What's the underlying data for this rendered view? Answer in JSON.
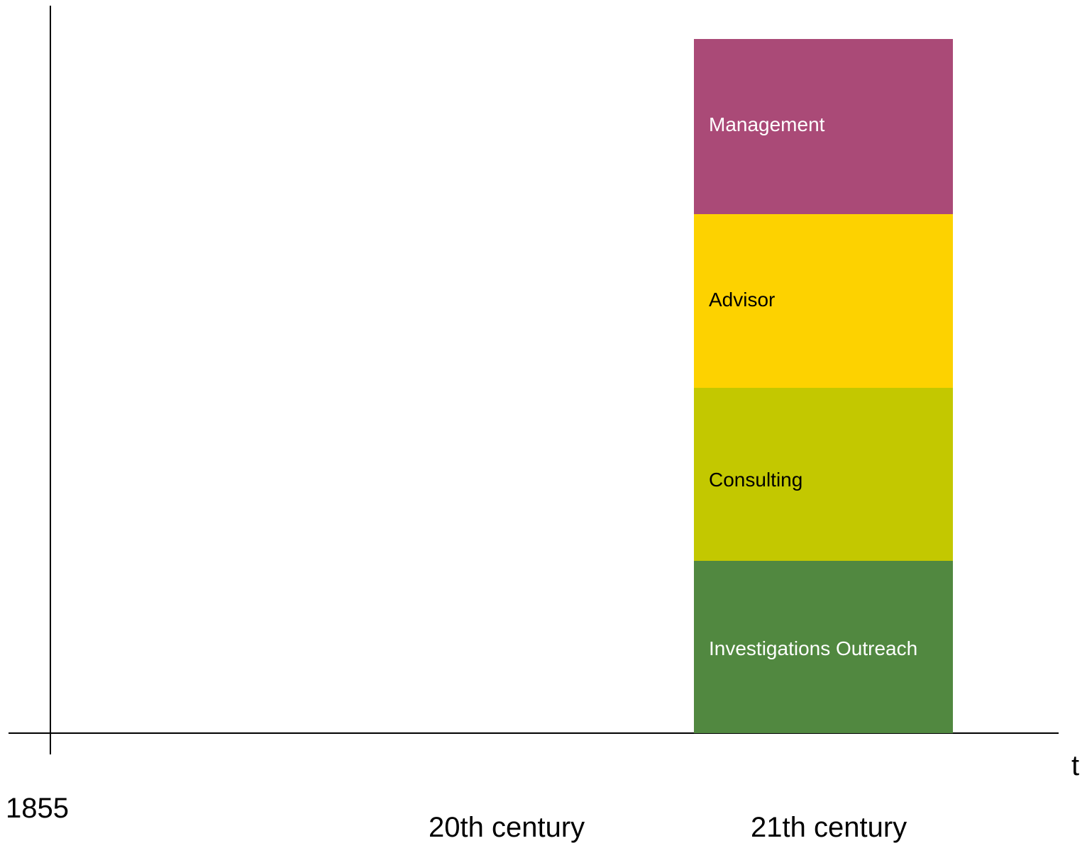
{
  "axis": {
    "time_label": "t",
    "ticks": [
      "1855",
      "20th century",
      "21th century"
    ]
  },
  "blocks": [
    {
      "label": "Management",
      "color": "#aa4a77",
      "text_color": "#ffffff"
    },
    {
      "label": "Advisor",
      "color": "#fdd200",
      "text_color": "#000000"
    },
    {
      "label": "Consulting",
      "color": "#c3c800",
      "text_color": "#000000"
    },
    {
      "label": "Investigations Outreach",
      "color": "#518840",
      "text_color": "#ffffff"
    }
  ]
}
